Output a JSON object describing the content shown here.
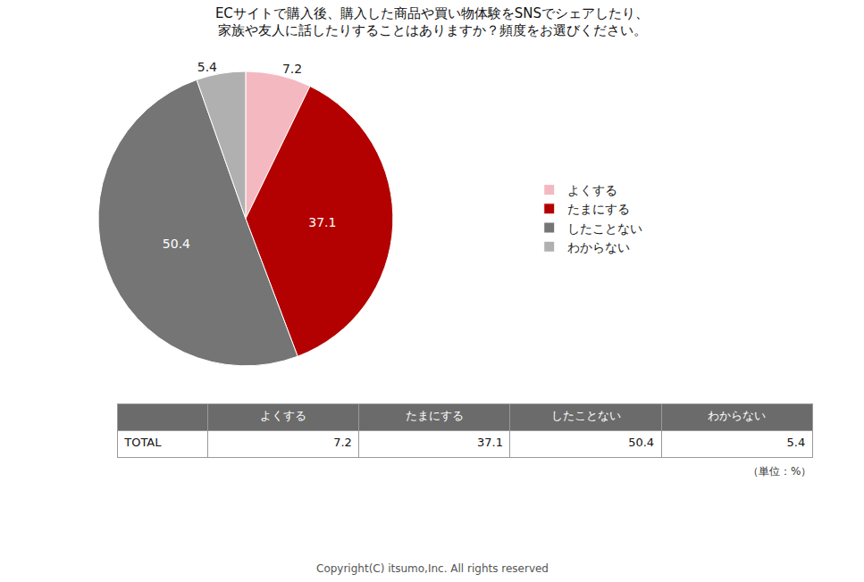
{
  "chart_data": [
    {
      "type": "pie",
      "title": "ECサイトで購入後、購入した商品や買い物体験をSNSでシェアしたり、",
      "subtitle": "家族や友人に話したりすることはありますか？頻度をお選びください。",
      "categories": [
        "よくする",
        "たまにする",
        "したことない",
        "わからない"
      ],
      "values": [
        7.2,
        37.1,
        50.4,
        5.4
      ],
      "colors": [
        "#f4b8c1",
        "#b30000",
        "#757575",
        "#b0b0b0"
      ],
      "data_labels": true,
      "legend": "right"
    },
    {
      "type": "table",
      "categories": [
        "よくする",
        "たまにする",
        "したことない",
        "わからない"
      ],
      "series": [
        {
          "name": "TOTAL",
          "values": [
            7.2,
            37.1,
            50.4,
            5.4
          ]
        }
      ],
      "color": "#6b6b6b",
      "annotations": [
        "（単位：%）",
        "Copyright(C) itsumo,Inc. All rights reserved"
      ]
    }
  ]
}
